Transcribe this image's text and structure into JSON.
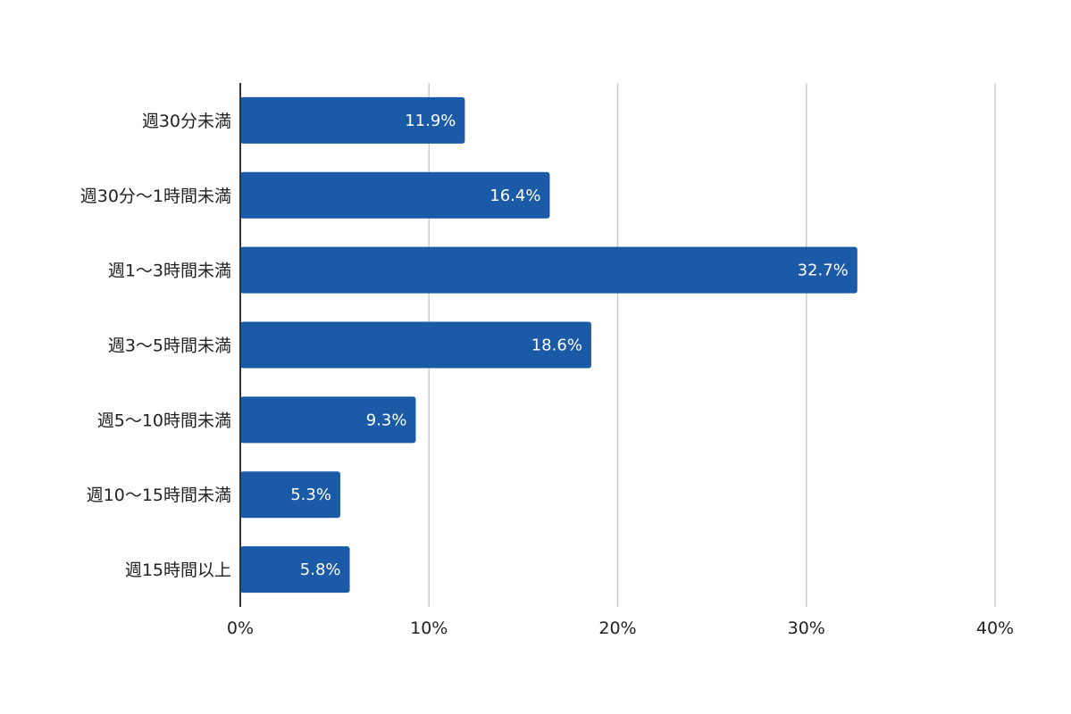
{
  "chart_data": {
    "type": "bar",
    "orientation": "horizontal",
    "categories": [
      "週30分未満",
      "週30分〜1時間未満",
      "週1〜3時間未満",
      "週3〜5時間未満",
      "週5〜10時間未満",
      "週10〜15時間未満",
      "週15時間以上"
    ],
    "values": [
      11.9,
      16.4,
      32.7,
      18.6,
      9.3,
      5.3,
      5.8
    ],
    "value_labels": [
      "11.9%",
      "16.4%",
      "32.7%",
      "18.6%",
      "9.3%",
      "5.3%",
      "5.8%"
    ],
    "xlim": [
      0,
      40
    ],
    "x_ticks": [
      0,
      10,
      20,
      30,
      40
    ],
    "x_tick_labels": [
      "0%",
      "10%",
      "20%",
      "30%",
      "40%"
    ],
    "title": "",
    "xlabel": "",
    "ylabel": "",
    "grid": "vertical",
    "legend": "none",
    "colors": {
      "bar": "#1a5aa6",
      "grid": "#cccccc",
      "axis": "#333333",
      "text": "#222222",
      "value_text": "#ffffff"
    }
  }
}
